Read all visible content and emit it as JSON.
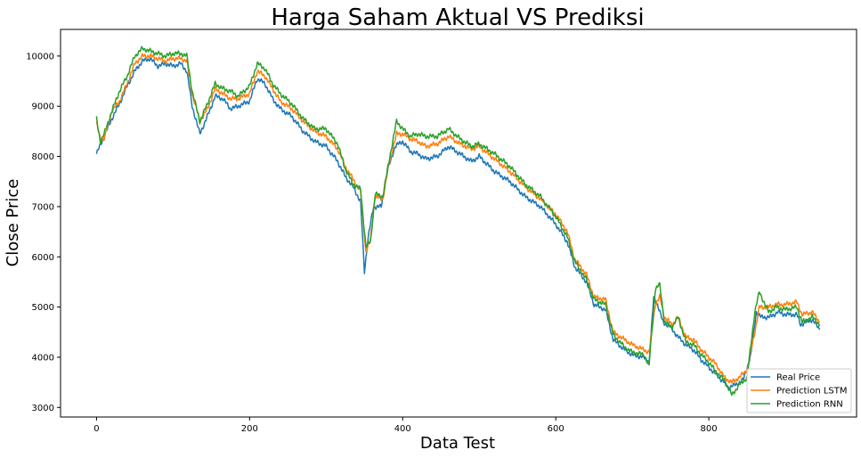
{
  "chart_data": {
    "type": "line",
    "title": "Harga Saham Aktual VS Prediksi",
    "xlabel": "Data Test",
    "ylabel": "Close Price",
    "xlim": [
      -47,
      993
    ],
    "ylim": [
      2810,
      10530
    ],
    "xticks": [
      0,
      200,
      400,
      600,
      800
    ],
    "yticks": [
      3000,
      4000,
      5000,
      6000,
      7000,
      8000,
      9000,
      10000
    ],
    "grid": false,
    "legend_position": "lower-right",
    "series": [
      {
        "name": "Real Price",
        "color": "#1f77b4",
        "points": [
          [
            0,
            8050
          ],
          [
            10,
            8400
          ],
          [
            20,
            8750
          ],
          [
            30,
            9050
          ],
          [
            40,
            9400
          ],
          [
            50,
            9700
          ],
          [
            60,
            9900
          ],
          [
            70,
            9950
          ],
          [
            80,
            9800
          ],
          [
            90,
            9850
          ],
          [
            100,
            9800
          ],
          [
            110,
            9850
          ],
          [
            118,
            9700
          ],
          [
            125,
            9000
          ],
          [
            135,
            8450
          ],
          [
            145,
            8800
          ],
          [
            155,
            9200
          ],
          [
            165,
            9150
          ],
          [
            175,
            8950
          ],
          [
            185,
            9000
          ],
          [
            200,
            9100
          ],
          [
            210,
            9550
          ],
          [
            220,
            9450
          ],
          [
            230,
            9150
          ],
          [
            240,
            8950
          ],
          [
            255,
            8800
          ],
          [
            270,
            8500
          ],
          [
            285,
            8300
          ],
          [
            300,
            8200
          ],
          [
            315,
            7900
          ],
          [
            325,
            7600
          ],
          [
            335,
            7400
          ],
          [
            345,
            7100
          ],
          [
            350,
            5700
          ],
          [
            355,
            6400
          ],
          [
            362,
            7000
          ],
          [
            372,
            7000
          ],
          [
            380,
            7700
          ],
          [
            390,
            8200
          ],
          [
            400,
            8300
          ],
          [
            410,
            8100
          ],
          [
            420,
            8050
          ],
          [
            430,
            7950
          ],
          [
            445,
            8000
          ],
          [
            460,
            8200
          ],
          [
            475,
            8050
          ],
          [
            490,
            7900
          ],
          [
            500,
            8000
          ],
          [
            520,
            7700
          ],
          [
            540,
            7500
          ],
          [
            560,
            7200
          ],
          [
            580,
            7000
          ],
          [
            600,
            6650
          ],
          [
            615,
            6300
          ],
          [
            625,
            5800
          ],
          [
            640,
            5500
          ],
          [
            650,
            5050
          ],
          [
            665,
            4950
          ],
          [
            675,
            4350
          ],
          [
            690,
            4150
          ],
          [
            700,
            4050
          ],
          [
            715,
            4000
          ],
          [
            722,
            3900
          ],
          [
            728,
            5200
          ],
          [
            733,
            5050
          ],
          [
            740,
            4700
          ],
          [
            750,
            4600
          ],
          [
            760,
            4400
          ],
          [
            770,
            4250
          ],
          [
            780,
            4150
          ],
          [
            790,
            3950
          ],
          [
            800,
            3800
          ],
          [
            810,
            3650
          ],
          [
            820,
            3500
          ],
          [
            825,
            3400
          ],
          [
            835,
            3450
          ],
          [
            845,
            3550
          ],
          [
            855,
            4050
          ],
          [
            862,
            4900
          ],
          [
            868,
            4800
          ],
          [
            880,
            4800
          ],
          [
            890,
            4900
          ],
          [
            900,
            4850
          ],
          [
            915,
            4850
          ],
          [
            920,
            4650
          ],
          [
            935,
            4750
          ],
          [
            945,
            4550
          ]
        ]
      },
      {
        "name": "Prediction LSTM",
        "color": "#ff7f0e",
        "points": [
          [
            0,
            8650
          ],
          [
            5,
            8350
          ],
          [
            10,
            8350
          ],
          [
            20,
            8900
          ],
          [
            30,
            9100
          ],
          [
            40,
            9450
          ],
          [
            50,
            9850
          ],
          [
            60,
            10000
          ],
          [
            70,
            10000
          ],
          [
            80,
            9950
          ],
          [
            90,
            9900
          ],
          [
            100,
            9950
          ],
          [
            110,
            9950
          ],
          [
            118,
            9900
          ],
          [
            125,
            9250
          ],
          [
            135,
            8700
          ],
          [
            145,
            8950
          ],
          [
            155,
            9350
          ],
          [
            165,
            9250
          ],
          [
            175,
            9150
          ],
          [
            185,
            9150
          ],
          [
            200,
            9250
          ],
          [
            210,
            9700
          ],
          [
            220,
            9600
          ],
          [
            230,
            9350
          ],
          [
            240,
            9100
          ],
          [
            255,
            8950
          ],
          [
            270,
            8700
          ],
          [
            285,
            8500
          ],
          [
            300,
            8400
          ],
          [
            315,
            8150
          ],
          [
            325,
            7800
          ],
          [
            335,
            7550
          ],
          [
            345,
            7300
          ],
          [
            352,
            6100
          ],
          [
            358,
            6350
          ],
          [
            364,
            7200
          ],
          [
            374,
            7150
          ],
          [
            382,
            7850
          ],
          [
            392,
            8450
          ],
          [
            400,
            8450
          ],
          [
            410,
            8350
          ],
          [
            420,
            8300
          ],
          [
            430,
            8200
          ],
          [
            445,
            8250
          ],
          [
            460,
            8400
          ],
          [
            475,
            8250
          ],
          [
            490,
            8150
          ],
          [
            500,
            8200
          ],
          [
            520,
            7950
          ],
          [
            540,
            7700
          ],
          [
            560,
            7400
          ],
          [
            580,
            7150
          ],
          [
            600,
            6850
          ],
          [
            615,
            6500
          ],
          [
            625,
            5950
          ],
          [
            640,
            5650
          ],
          [
            650,
            5200
          ],
          [
            665,
            5150
          ],
          [
            675,
            4500
          ],
          [
            690,
            4350
          ],
          [
            700,
            4250
          ],
          [
            715,
            4150
          ],
          [
            722,
            4100
          ],
          [
            730,
            5050
          ],
          [
            736,
            5200
          ],
          [
            742,
            4800
          ],
          [
            752,
            4650
          ],
          [
            760,
            4800
          ],
          [
            770,
            4400
          ],
          [
            780,
            4350
          ],
          [
            790,
            4150
          ],
          [
            800,
            4000
          ],
          [
            810,
            3850
          ],
          [
            820,
            3600
          ],
          [
            830,
            3500
          ],
          [
            840,
            3600
          ],
          [
            850,
            3750
          ],
          [
            860,
            4500
          ],
          [
            866,
            5000
          ],
          [
            878,
            5000
          ],
          [
            888,
            5050
          ],
          [
            900,
            5050
          ],
          [
            915,
            5100
          ],
          [
            922,
            4850
          ],
          [
            935,
            4900
          ],
          [
            945,
            4700
          ]
        ]
      },
      {
        "name": "Prediction RNN",
        "color": "#2ca02c",
        "points": [
          [
            0,
            8750
          ],
          [
            5,
            8300
          ],
          [
            10,
            8450
          ],
          [
            20,
            8900
          ],
          [
            30,
            9300
          ],
          [
            40,
            9600
          ],
          [
            50,
            10000
          ],
          [
            60,
            10150
          ],
          [
            70,
            10100
          ],
          [
            80,
            10050
          ],
          [
            90,
            10000
          ],
          [
            100,
            10050
          ],
          [
            110,
            10050
          ],
          [
            118,
            10000
          ],
          [
            125,
            9300
          ],
          [
            135,
            8700
          ],
          [
            145,
            9050
          ],
          [
            155,
            9450
          ],
          [
            165,
            9350
          ],
          [
            175,
            9300
          ],
          [
            185,
            9200
          ],
          [
            200,
            9400
          ],
          [
            210,
            9850
          ],
          [
            220,
            9750
          ],
          [
            230,
            9450
          ],
          [
            240,
            9250
          ],
          [
            255,
            9050
          ],
          [
            270,
            8750
          ],
          [
            285,
            8550
          ],
          [
            300,
            8550
          ],
          [
            315,
            8250
          ],
          [
            325,
            7750
          ],
          [
            335,
            7450
          ],
          [
            345,
            7350
          ],
          [
            352,
            6200
          ],
          [
            358,
            6300
          ],
          [
            364,
            7250
          ],
          [
            374,
            7200
          ],
          [
            382,
            7900
          ],
          [
            392,
            8700
          ],
          [
            400,
            8550
          ],
          [
            410,
            8400
          ],
          [
            420,
            8450
          ],
          [
            430,
            8400
          ],
          [
            445,
            8400
          ],
          [
            460,
            8550
          ],
          [
            475,
            8350
          ],
          [
            490,
            8200
          ],
          [
            500,
            8250
          ],
          [
            520,
            8050
          ],
          [
            540,
            7800
          ],
          [
            560,
            7450
          ],
          [
            580,
            7200
          ],
          [
            600,
            6800
          ],
          [
            615,
            6400
          ],
          [
            625,
            5900
          ],
          [
            640,
            5550
          ],
          [
            650,
            5150
          ],
          [
            665,
            5050
          ],
          [
            675,
            4450
          ],
          [
            690,
            4200
          ],
          [
            700,
            4100
          ],
          [
            715,
            4050
          ],
          [
            722,
            3850
          ],
          [
            730,
            5350
          ],
          [
            736,
            5450
          ],
          [
            742,
            4700
          ],
          [
            752,
            4600
          ],
          [
            760,
            4800
          ],
          [
            770,
            4300
          ],
          [
            780,
            4250
          ],
          [
            790,
            4050
          ],
          [
            800,
            3900
          ],
          [
            810,
            3700
          ],
          [
            820,
            3550
          ],
          [
            830,
            3250
          ],
          [
            840,
            3450
          ],
          [
            850,
            3600
          ],
          [
            860,
            4900
          ],
          [
            866,
            5300
          ],
          [
            878,
            4900
          ],
          [
            888,
            5000
          ],
          [
            900,
            4950
          ],
          [
            915,
            5000
          ],
          [
            922,
            4700
          ],
          [
            935,
            4800
          ],
          [
            945,
            4650
          ]
        ]
      }
    ]
  }
}
